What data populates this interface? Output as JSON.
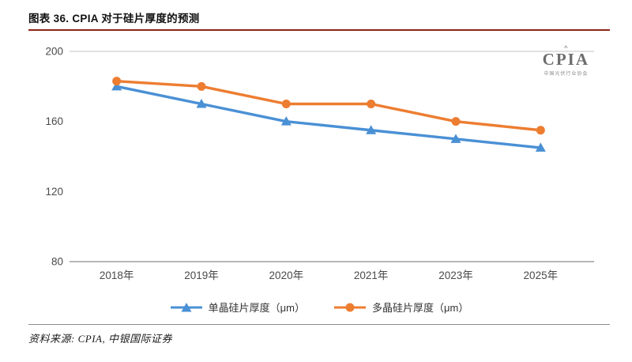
{
  "header": {
    "title": "图表 36. CPIA 对于硅片厚度的预测"
  },
  "logo": {
    "text": "CPIA",
    "rays": "^",
    "subtext": "中国光伏行业协会"
  },
  "source": {
    "text": "资料来源: CPIA, 中银国际证券"
  },
  "colors": {
    "title_underline": "#8e2418",
    "mono_series": "#4a90d5",
    "multi_series": "#ed7d31",
    "axis_line": "#9d9d9d",
    "top_border": "#cfcfcf",
    "tick_text": "#4a4a4a"
  },
  "chart_data": {
    "type": "line",
    "categories": [
      "2018年",
      "2019年",
      "2020年",
      "2021年",
      "2023年",
      "2025年"
    ],
    "series": [
      {
        "name": "单晶硅片厚度（μm）",
        "values": [
          180,
          170,
          160,
          155,
          150,
          145
        ],
        "color": "#4a90d5",
        "marker": "triangle"
      },
      {
        "name": "多晶硅片厚度（μm）",
        "values": [
          183,
          180,
          170,
          170,
          160,
          155
        ],
        "color": "#ed7d31",
        "marker": "circle"
      }
    ],
    "title": "图表 36. CPIA 对于硅片厚度的预测",
    "xlabel": "",
    "ylabel": "",
    "ylim": [
      80,
      200
    ],
    "yticks": [
      80,
      120,
      160,
      200
    ],
    "grid": false,
    "legend_position": "bottom"
  }
}
